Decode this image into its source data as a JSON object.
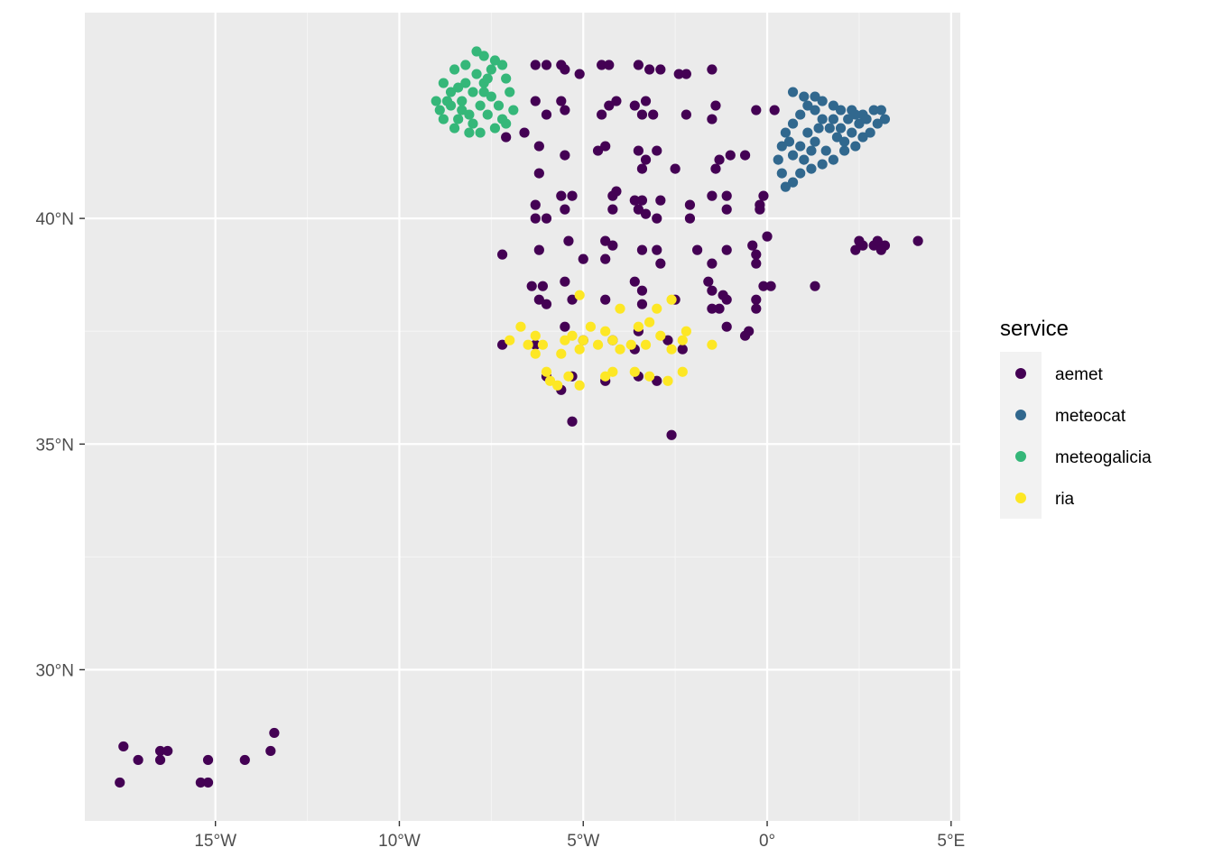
{
  "chart_data": {
    "type": "scatter",
    "title": "",
    "xlabel": "",
    "ylabel": "",
    "xlim": [
      -18.55,
      5.25
    ],
    "ylim": [
      26.65,
      44.56
    ],
    "grid": true,
    "x_ticks": [
      {
        "value": -15,
        "label": "15°W"
      },
      {
        "value": -10,
        "label": "10°W"
      },
      {
        "value": -5,
        "label": "5°W"
      },
      {
        "value": 0,
        "label": "0°"
      },
      {
        "value": 5,
        "label": "5°E"
      }
    ],
    "y_ticks": [
      {
        "value": 30,
        "label": "30°N"
      },
      {
        "value": 35,
        "label": "35°N"
      },
      {
        "value": 40,
        "label": "40°N"
      }
    ],
    "legend": {
      "title": "service",
      "placement": "right",
      "entries": [
        {
          "name": "aemet",
          "color": "#440154"
        },
        {
          "name": "meteocat",
          "color": "#31688E"
        },
        {
          "name": "meteogalicia",
          "color": "#35B779"
        },
        {
          "name": "ria",
          "color": "#FDE725"
        }
      ]
    },
    "series": [
      {
        "name": "aemet",
        "color": "#440154",
        "points": [
          [
            -17.5,
            28.3
          ],
          [
            -17.1,
            28.0
          ],
          [
            -16.5,
            28.2
          ],
          [
            -16.3,
            28.2
          ],
          [
            -16.5,
            28.0
          ],
          [
            -15.4,
            27.5
          ],
          [
            -15.2,
            27.5
          ],
          [
            -15.2,
            28.0
          ],
          [
            -14.2,
            28.0
          ],
          [
            -13.5,
            28.2
          ],
          [
            -13.4,
            28.6
          ],
          [
            -17.6,
            27.5
          ],
          [
            -7.1,
            41.8
          ],
          [
            -6.6,
            41.9
          ],
          [
            -6.3,
            43.4
          ],
          [
            -6.0,
            43.4
          ],
          [
            -5.6,
            43.4
          ],
          [
            -5.5,
            43.3
          ],
          [
            -5.1,
            43.2
          ],
          [
            -4.5,
            43.4
          ],
          [
            -4.3,
            43.4
          ],
          [
            -3.5,
            43.4
          ],
          [
            -3.2,
            43.3
          ],
          [
            -2.9,
            43.3
          ],
          [
            -2.4,
            43.2
          ],
          [
            -2.2,
            43.2
          ],
          [
            -1.5,
            43.3
          ],
          [
            -6.3,
            42.6
          ],
          [
            -5.6,
            42.6
          ],
          [
            -5.5,
            42.4
          ],
          [
            -4.3,
            42.5
          ],
          [
            -4.1,
            42.6
          ],
          [
            -3.6,
            42.5
          ],
          [
            -3.3,
            42.6
          ],
          [
            -3.1,
            42.3
          ],
          [
            -2.2,
            42.3
          ],
          [
            -1.4,
            42.5
          ],
          [
            -1.5,
            42.2
          ],
          [
            -0.3,
            42.4
          ],
          [
            0.2,
            42.4
          ],
          [
            -6.0,
            42.3
          ],
          [
            -4.5,
            42.3
          ],
          [
            -3.4,
            42.3
          ],
          [
            -6.2,
            41.6
          ],
          [
            -5.5,
            41.4
          ],
          [
            -4.4,
            41.6
          ],
          [
            -4.6,
            41.5
          ],
          [
            -3.5,
            41.5
          ],
          [
            -3.0,
            41.5
          ],
          [
            -3.3,
            41.3
          ],
          [
            -3.4,
            41.1
          ],
          [
            -2.5,
            41.1
          ],
          [
            -1.3,
            41.3
          ],
          [
            -1.0,
            41.4
          ],
          [
            -0.6,
            41.4
          ],
          [
            -6.2,
            41.0
          ],
          [
            -1.4,
            41.1
          ],
          [
            -6.3,
            40.3
          ],
          [
            -5.6,
            40.5
          ],
          [
            -5.3,
            40.5
          ],
          [
            -4.2,
            40.5
          ],
          [
            -4.1,
            40.6
          ],
          [
            -3.6,
            40.4
          ],
          [
            -3.4,
            40.4
          ],
          [
            -3.5,
            40.2
          ],
          [
            -3.3,
            40.1
          ],
          [
            -2.9,
            40.4
          ],
          [
            -2.1,
            40.3
          ],
          [
            -1.5,
            40.5
          ],
          [
            -1.1,
            40.5
          ],
          [
            -0.2,
            40.3
          ],
          [
            -0.1,
            40.5
          ],
          [
            -6.3,
            40.0
          ],
          [
            -6.0,
            40.0
          ],
          [
            -5.5,
            40.2
          ],
          [
            -4.2,
            40.2
          ],
          [
            -3.0,
            40.0
          ],
          [
            -2.1,
            40.0
          ],
          [
            -1.1,
            40.2
          ],
          [
            -0.2,
            40.2
          ],
          [
            -7.2,
            39.2
          ],
          [
            -6.2,
            39.3
          ],
          [
            -5.4,
            39.5
          ],
          [
            -5.0,
            39.1
          ],
          [
            -4.4,
            39.5
          ],
          [
            -4.2,
            39.4
          ],
          [
            -4.4,
            39.1
          ],
          [
            -3.4,
            39.3
          ],
          [
            -3.0,
            39.3
          ],
          [
            -2.9,
            39.0
          ],
          [
            -1.9,
            39.3
          ],
          [
            -1.5,
            39.0
          ],
          [
            -1.1,
            39.3
          ],
          [
            -0.4,
            39.4
          ],
          [
            -0.3,
            39.2
          ],
          [
            -0.3,
            39.0
          ],
          [
            0.0,
            39.6
          ],
          [
            -6.4,
            38.5
          ],
          [
            -6.1,
            38.5
          ],
          [
            -6.2,
            38.2
          ],
          [
            -5.5,
            38.6
          ],
          [
            -5.3,
            38.2
          ],
          [
            -4.4,
            38.2
          ],
          [
            -3.6,
            38.6
          ],
          [
            -3.4,
            38.4
          ],
          [
            -3.4,
            38.1
          ],
          [
            -2.5,
            38.2
          ],
          [
            -1.6,
            38.6
          ],
          [
            -1.5,
            38.4
          ],
          [
            -1.2,
            38.3
          ],
          [
            -1.1,
            38.2
          ],
          [
            -1.3,
            38.0
          ],
          [
            -0.3,
            38.2
          ],
          [
            -0.1,
            38.5
          ],
          [
            0.1,
            38.5
          ],
          [
            1.3,
            38.5
          ],
          [
            -6.0,
            38.1
          ],
          [
            -1.5,
            38.0
          ],
          [
            -0.3,
            38.0
          ],
          [
            -7.2,
            37.2
          ],
          [
            -6.3,
            37.2
          ],
          [
            -5.5,
            37.6
          ],
          [
            -5.0,
            37.3
          ],
          [
            -4.2,
            37.3
          ],
          [
            -3.5,
            37.5
          ],
          [
            -2.7,
            37.3
          ],
          [
            -2.3,
            37.1
          ],
          [
            -1.1,
            37.6
          ],
          [
            -0.6,
            37.4
          ],
          [
            -0.5,
            37.5
          ],
          [
            -3.6,
            37.1
          ],
          [
            -6.0,
            36.5
          ],
          [
            -5.3,
            36.5
          ],
          [
            -5.6,
            36.2
          ],
          [
            -4.4,
            36.4
          ],
          [
            -3.5,
            36.5
          ],
          [
            -3.0,
            36.4
          ],
          [
            -5.3,
            35.5
          ],
          [
            -2.6,
            35.2
          ],
          [
            2.6,
            39.4
          ],
          [
            2.5,
            39.5
          ],
          [
            2.9,
            39.4
          ],
          [
            3.0,
            39.5
          ],
          [
            3.2,
            39.4
          ],
          [
            4.1,
            39.5
          ],
          [
            2.4,
            39.3
          ],
          [
            3.1,
            39.3
          ]
        ]
      },
      {
        "name": "meteocat",
        "color": "#31688E",
        "points": [
          [
            0.7,
            42.8
          ],
          [
            1.0,
            42.7
          ],
          [
            1.3,
            42.7
          ],
          [
            1.5,
            42.6
          ],
          [
            1.8,
            42.5
          ],
          [
            2.0,
            42.4
          ],
          [
            2.3,
            42.4
          ],
          [
            2.6,
            42.3
          ],
          [
            2.9,
            42.4
          ],
          [
            3.1,
            42.4
          ],
          [
            3.2,
            42.2
          ],
          [
            3.0,
            42.1
          ],
          [
            2.8,
            41.9
          ],
          [
            2.6,
            41.8
          ],
          [
            2.4,
            41.6
          ],
          [
            2.1,
            41.5
          ],
          [
            1.8,
            41.3
          ],
          [
            1.5,
            41.2
          ],
          [
            1.2,
            41.1
          ],
          [
            0.9,
            41.0
          ],
          [
            0.7,
            40.8
          ],
          [
            0.5,
            40.7
          ],
          [
            0.4,
            41.0
          ],
          [
            0.3,
            41.3
          ],
          [
            0.4,
            41.6
          ],
          [
            0.5,
            41.9
          ],
          [
            0.7,
            42.1
          ],
          [
            0.9,
            42.3
          ],
          [
            1.1,
            42.5
          ],
          [
            1.3,
            42.4
          ],
          [
            1.5,
            42.2
          ],
          [
            1.7,
            42.0
          ],
          [
            1.9,
            41.8
          ],
          [
            2.1,
            41.7
          ],
          [
            2.3,
            41.9
          ],
          [
            2.5,
            42.1
          ],
          [
            2.7,
            42.2
          ],
          [
            1.1,
            41.9
          ],
          [
            0.9,
            41.6
          ],
          [
            1.3,
            41.7
          ],
          [
            1.6,
            41.5
          ],
          [
            0.7,
            41.4
          ],
          [
            1.0,
            41.3
          ],
          [
            1.4,
            42.0
          ],
          [
            1.8,
            42.2
          ],
          [
            2.2,
            42.2
          ],
          [
            0.6,
            41.7
          ],
          [
            1.2,
            41.5
          ],
          [
            2.0,
            42.0
          ],
          [
            2.4,
            42.3
          ]
        ]
      },
      {
        "name": "meteogalicia",
        "color": "#35B779",
        "points": [
          [
            -9.0,
            42.6
          ],
          [
            -8.8,
            43.0
          ],
          [
            -8.5,
            43.3
          ],
          [
            -8.2,
            43.4
          ],
          [
            -7.9,
            43.7
          ],
          [
            -7.7,
            43.6
          ],
          [
            -7.4,
            43.5
          ],
          [
            -7.2,
            43.4
          ],
          [
            -7.1,
            43.1
          ],
          [
            -7.0,
            42.8
          ],
          [
            -6.9,
            42.4
          ],
          [
            -7.1,
            42.1
          ],
          [
            -7.4,
            42.0
          ],
          [
            -7.8,
            41.9
          ],
          [
            -8.1,
            41.9
          ],
          [
            -8.5,
            42.0
          ],
          [
            -8.8,
            42.2
          ],
          [
            -8.9,
            42.4
          ],
          [
            -8.6,
            42.5
          ],
          [
            -8.3,
            42.6
          ],
          [
            -8.0,
            42.8
          ],
          [
            -7.7,
            43.0
          ],
          [
            -7.5,
            42.7
          ],
          [
            -7.8,
            42.5
          ],
          [
            -8.1,
            42.3
          ],
          [
            -8.4,
            42.2
          ],
          [
            -7.6,
            42.3
          ],
          [
            -8.2,
            43.0
          ],
          [
            -8.6,
            42.8
          ],
          [
            -7.3,
            42.5
          ],
          [
            -7.9,
            43.2
          ],
          [
            -8.4,
            42.9
          ],
          [
            -7.6,
            43.1
          ],
          [
            -8.0,
            42.1
          ],
          [
            -7.2,
            42.2
          ],
          [
            -8.7,
            42.6
          ],
          [
            -7.7,
            42.8
          ],
          [
            -8.3,
            42.4
          ],
          [
            -7.5,
            43.3
          ]
        ]
      },
      {
        "name": "ria",
        "color": "#FDE725",
        "points": [
          [
            -7.0,
            37.3
          ],
          [
            -6.7,
            37.6
          ],
          [
            -6.5,
            37.2
          ],
          [
            -6.3,
            37.4
          ],
          [
            -6.1,
            37.2
          ],
          [
            -5.5,
            37.3
          ],
          [
            -5.3,
            37.4
          ],
          [
            -5.1,
            37.1
          ],
          [
            -5.0,
            37.3
          ],
          [
            -4.6,
            37.2
          ],
          [
            -4.4,
            37.5
          ],
          [
            -4.2,
            37.3
          ],
          [
            -4.0,
            37.1
          ],
          [
            -3.7,
            37.2
          ],
          [
            -3.5,
            37.6
          ],
          [
            -3.3,
            37.2
          ],
          [
            -2.9,
            37.4
          ],
          [
            -2.6,
            37.1
          ],
          [
            -2.3,
            37.3
          ],
          [
            -1.5,
            37.2
          ],
          [
            -6.0,
            36.6
          ],
          [
            -5.9,
            36.4
          ],
          [
            -5.7,
            36.3
          ],
          [
            -5.4,
            36.5
          ],
          [
            -5.1,
            36.3
          ],
          [
            -4.4,
            36.5
          ],
          [
            -4.2,
            36.6
          ],
          [
            -3.6,
            36.6
          ],
          [
            -3.2,
            36.5
          ],
          [
            -2.7,
            36.4
          ],
          [
            -2.3,
            36.6
          ],
          [
            -3.0,
            38.0
          ],
          [
            -2.6,
            38.2
          ],
          [
            -5.1,
            38.3
          ],
          [
            -4.0,
            38.0
          ],
          [
            -6.3,
            37.0
          ],
          [
            -5.6,
            37.0
          ],
          [
            -4.8,
            37.6
          ],
          [
            -3.2,
            37.7
          ],
          [
            -2.2,
            37.5
          ]
        ]
      }
    ]
  }
}
